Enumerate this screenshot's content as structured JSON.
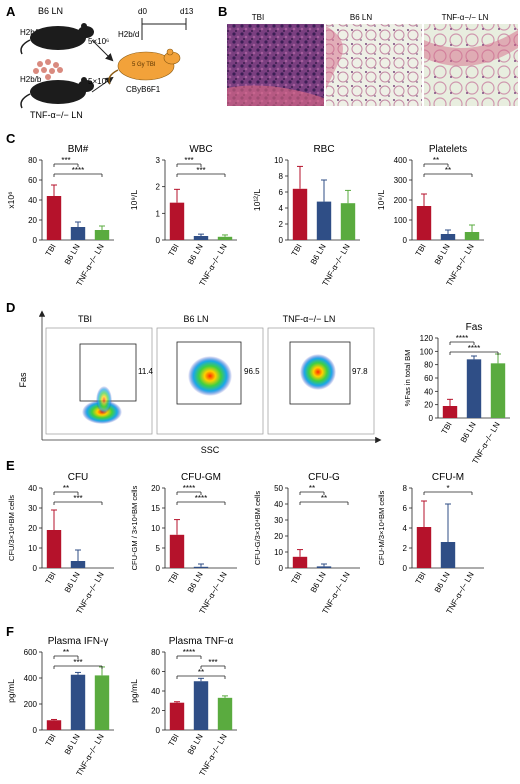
{
  "panel_labels": [
    "A",
    "B",
    "C",
    "D",
    "E",
    "F"
  ],
  "colors": {
    "tbi": "#b5122b",
    "b6": "#2f4e86",
    "tnf": "#5aab3f",
    "tbi_orange": "#f2a23a"
  },
  "panel_a": {
    "donor1": "B6 LN",
    "donor1_genotype": "H2b/b",
    "donor2": "TNF-α−/− LN",
    "donor2_genotype": "H2b/b",
    "dose1": "5×10⁶",
    "dose2": "5×10⁶",
    "recipient": "CByB6F1",
    "recipient_genotype": "H2b/d",
    "treatment": "5 Gy TBI",
    "timeline_start": "d0",
    "timeline_end": "d13"
  },
  "panel_b": {
    "titles": [
      "TBI",
      "B6 LN",
      "TNF-α−/− LN"
    ]
  },
  "panel_d": {
    "titles": [
      "TBI",
      "B6 LN",
      "TNF-α−/− LN"
    ],
    "gate_values": [
      "11.4",
      "96.5",
      "97.8"
    ],
    "y_label": "Fas",
    "x_label": "SSC"
  },
  "chart_data": [
    {
      "id": "bm",
      "type": "bar",
      "title": "BM#",
      "ylabel": "x10⁶",
      "ylim": [
        0,
        80
      ],
      "yticks": [
        0,
        20,
        40,
        60,
        80
      ],
      "categories": [
        "TBI",
        "B6 LN",
        "TNF-α−/− LN"
      ],
      "values": [
        44,
        13,
        10
      ],
      "errors": [
        11,
        5,
        4
      ],
      "sig": [
        {
          "from": 0,
          "to": 1,
          "label": "***"
        },
        {
          "from": 0,
          "to": 2,
          "label": "****"
        }
      ]
    },
    {
      "id": "wbc",
      "type": "bar",
      "title": "WBC",
      "ylabel": "10⁹/L",
      "ylim": [
        0,
        3
      ],
      "yticks": [
        0,
        1,
        2,
        3
      ],
      "categories": [
        "TBI",
        "B6 LN",
        "TNF-α−/− LN"
      ],
      "values": [
        1.4,
        0.15,
        0.12
      ],
      "errors": [
        0.5,
        0.07,
        0.07
      ],
      "sig": [
        {
          "from": 0,
          "to": 1,
          "label": "***"
        },
        {
          "from": 0,
          "to": 2,
          "label": "***"
        }
      ]
    },
    {
      "id": "rbc",
      "type": "bar",
      "title": "RBC",
      "ylabel": "10¹²/L",
      "ylim": [
        0,
        10
      ],
      "yticks": [
        0,
        2,
        4,
        6,
        8,
        10
      ],
      "categories": [
        "TBI",
        "B6 LN",
        "TNF-α−/− LN"
      ],
      "values": [
        6.4,
        4.8,
        4.6
      ],
      "errors": [
        2.8,
        2.7,
        1.6
      ],
      "sig": []
    },
    {
      "id": "plt",
      "type": "bar",
      "title": "Platelets",
      "ylabel": "10⁹/L",
      "ylim": [
        0,
        400
      ],
      "yticks": [
        0,
        100,
        200,
        300,
        400
      ],
      "categories": [
        "TBI",
        "B6 LN",
        "TNF-α−/− LN"
      ],
      "values": [
        170,
        30,
        40
      ],
      "errors": [
        60,
        20,
        35
      ],
      "sig": [
        {
          "from": 0,
          "to": 1,
          "label": "**"
        },
        {
          "from": 0,
          "to": 2,
          "label": "**"
        }
      ]
    },
    {
      "id": "fas",
      "type": "bar",
      "title": "Fas",
      "ylabel": "%Fas in total BM",
      "ylim": [
        0,
        120
      ],
      "yticks": [
        0,
        20,
        40,
        60,
        80,
        100,
        120
      ],
      "categories": [
        "TBI",
        "B6 LN",
        "TNF-α−/− LN"
      ],
      "values": [
        18,
        88,
        82
      ],
      "errors": [
        10,
        5,
        14
      ],
      "sig": [
        {
          "from": 0,
          "to": 1,
          "label": "****"
        },
        {
          "from": 0,
          "to": 2,
          "label": "****"
        }
      ]
    },
    {
      "id": "cfu",
      "type": "bar",
      "title": "CFU",
      "ylabel": "CFU/3×10⁴BM cells",
      "ylim": [
        0,
        40
      ],
      "yticks": [
        0,
        10,
        20,
        30,
        40
      ],
      "categories": [
        "TBI",
        "B6 LN",
        "TNF-α−/− LN"
      ],
      "values": [
        19,
        3.5,
        0
      ],
      "errors": [
        10,
        5.5,
        0
      ],
      "sig": [
        {
          "from": 0,
          "to": 1,
          "label": "**"
        },
        {
          "from": 0,
          "to": 2,
          "label": "***"
        }
      ]
    },
    {
      "id": "cfugm",
      "type": "bar",
      "title": "CFU-GM",
      "ylabel": "CFU-GM / 3×10⁴BM cells",
      "ylim": [
        0,
        20
      ],
      "yticks": [
        0,
        5,
        10,
        15,
        20
      ],
      "categories": [
        "TBI",
        "B6 LN",
        "TNF-α−/− LN"
      ],
      "values": [
        8.3,
        0.3,
        0
      ],
      "errors": [
        3.8,
        0.7,
        0
      ],
      "sig": [
        {
          "from": 0,
          "to": 1,
          "label": "****"
        },
        {
          "from": 0,
          "to": 2,
          "label": "****"
        }
      ]
    },
    {
      "id": "cfug",
      "type": "bar",
      "title": "CFU-G",
      "ylabel": "CFU-G/3×10⁴BM cells",
      "ylim": [
        0,
        50
      ],
      "yticks": [
        0,
        10,
        20,
        30,
        40,
        50
      ],
      "categories": [
        "TBI",
        "B6 LN",
        "TNF-α−/− LN"
      ],
      "values": [
        7,
        1,
        0
      ],
      "errors": [
        4.5,
        1.5,
        0
      ],
      "sig": [
        {
          "from": 0,
          "to": 1,
          "label": "**"
        },
        {
          "from": 0,
          "to": 2,
          "label": "**"
        }
      ]
    },
    {
      "id": "cfum",
      "type": "bar",
      "title": "CFU-M",
      "ylabel": "CFU-M/3×10⁴BM cells",
      "ylim": [
        0,
        8
      ],
      "yticks": [
        0,
        2,
        4,
        6,
        8
      ],
      "categories": [
        "TBI",
        "B6 LN",
        "TNF-α−/− LN"
      ],
      "values": [
        4.1,
        2.6,
        0
      ],
      "errors": [
        2.6,
        3.8,
        0
      ],
      "sig": [
        {
          "from": 0,
          "to": 2,
          "label": "*"
        }
      ]
    },
    {
      "id": "ifn",
      "type": "bar",
      "title": "Plasma IFN-γ",
      "ylabel": "pg/mL",
      "ylim": [
        0,
        600
      ],
      "yticks": [
        0,
        200,
        400,
        600
      ],
      "categories": [
        "TBI",
        "B6 LN",
        "TNF-α−/− LN"
      ],
      "values": [
        75,
        425,
        420
      ],
      "errors": [
        6,
        18,
        65
      ],
      "sig": [
        {
          "from": 0,
          "to": 1,
          "label": "**"
        },
        {
          "from": 0,
          "to": 2,
          "label": "***"
        }
      ]
    },
    {
      "id": "tnf",
      "type": "bar",
      "title": "Plasma TNF-α",
      "ylabel": "pg/mL",
      "ylim": [
        0,
        80
      ],
      "yticks": [
        0,
        20,
        40,
        60,
        80
      ],
      "categories": [
        "TBI",
        "B6 LN",
        "TNF-α−/− LN"
      ],
      "values": [
        28,
        50,
        33
      ],
      "errors": [
        1,
        3,
        2
      ],
      "sig": [
        {
          "from": 0,
          "to": 1,
          "label": "****"
        },
        {
          "from": 1,
          "to": 2,
          "label": "***"
        },
        {
          "from": 0,
          "to": 2,
          "label": "**"
        }
      ]
    }
  ]
}
